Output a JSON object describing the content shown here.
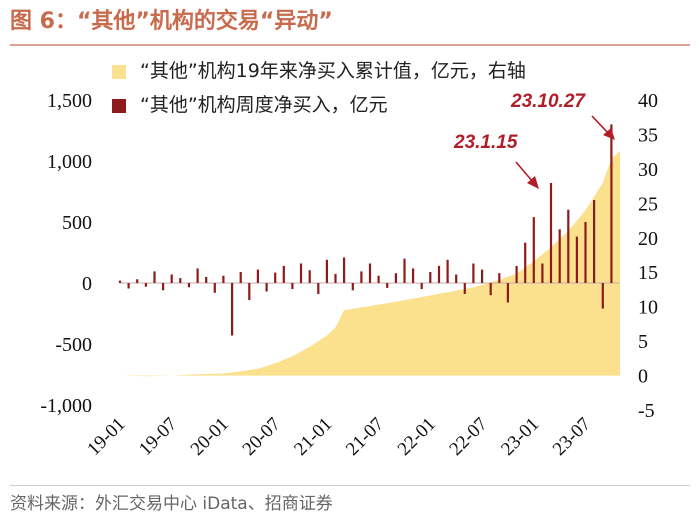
{
  "title": "图 6：“其他”机构的交易“异动”",
  "source": "资料来源：外汇交易中心 iData、招商证券",
  "colors": {
    "title": "#c86a4c",
    "cumulative": "#fbe18e",
    "weekly": "#8e1b1b",
    "annotation": "#b01e2a"
  },
  "chart_data": {
    "type": "bar",
    "legend": [
      {
        "name": "“其他”机构19年来净买入累计值，亿元，右轴",
        "color": "#fbe18e",
        "kind": "area"
      },
      {
        "name": "“其他”机构周度净买入，亿元",
        "color": "#8e1b1b",
        "kind": "bar"
      }
    ],
    "left_axis": {
      "ylim": [
        -1000,
        1500
      ],
      "ticks": [
        -1000,
        -500,
        0,
        500,
        1000,
        1500
      ],
      "tick_labels": [
        "-1,000",
        "-500",
        "0",
        "500",
        "1,000",
        "1,500"
      ]
    },
    "right_axis": {
      "ylim": [
        -5,
        40
      ],
      "ticks": [
        -5,
        0,
        5,
        10,
        15,
        20,
        25,
        30,
        35,
        40
      ],
      "tick_labels": [
        "-5",
        "0",
        "5",
        "10",
        "15",
        "20",
        "25",
        "30",
        "35",
        "40"
      ]
    },
    "x_tick_labels": [
      "19-01",
      "19-07",
      "20-01",
      "20-07",
      "21-01",
      "21-07",
      "22-01",
      "22-07",
      "23-01",
      "23-07"
    ],
    "x_start": "2019-01",
    "x_end": "2023-11",
    "series": [
      {
        "name": "“其他”机构19年来净买入累计值，亿元，右轴",
        "axis": "right",
        "points": [
          [
            "2019-01",
            0.0
          ],
          [
            "2019-04",
            -0.1
          ],
          [
            "2019-07",
            0.0
          ],
          [
            "2019-10",
            0.2
          ],
          [
            "2020-01",
            0.3
          ],
          [
            "2020-03",
            0.6
          ],
          [
            "2020-05",
            1.0
          ],
          [
            "2020-07",
            1.8
          ],
          [
            "2020-09",
            2.8
          ],
          [
            "2020-11",
            4.2
          ],
          [
            "2021-01",
            5.8
          ],
          [
            "2021-02",
            7.0
          ],
          [
            "2021-03",
            9.5
          ],
          [
            "2021-06",
            10.1
          ],
          [
            "2021-09",
            10.7
          ],
          [
            "2021-12",
            11.4
          ],
          [
            "2022-03",
            12.1
          ],
          [
            "2022-06",
            12.8
          ],
          [
            "2022-09",
            13.9
          ],
          [
            "2022-11",
            14.8
          ],
          [
            "2023-01",
            16.6
          ],
          [
            "2023-03",
            18.6
          ],
          [
            "2023-05",
            21.0
          ],
          [
            "2023-07",
            24.0
          ],
          [
            "2023-09",
            28.0
          ],
          [
            "2023-10",
            31.5
          ],
          [
            "2023-11",
            32.6
          ]
        ]
      },
      {
        "name": "“其他”机构周度净买入，亿元",
        "axis": "left",
        "points": [
          [
            "2019-01",
            20
          ],
          [
            "2019-02",
            -45
          ],
          [
            "2019-03",
            30
          ],
          [
            "2019-04",
            -30
          ],
          [
            "2019-05",
            95
          ],
          [
            "2019-06",
            -60
          ],
          [
            "2019-07",
            70
          ],
          [
            "2019-08",
            40
          ],
          [
            "2019-09",
            -35
          ],
          [
            "2019-10",
            120
          ],
          [
            "2019-11",
            50
          ],
          [
            "2019-12",
            -80
          ],
          [
            "2020-01",
            60
          ],
          [
            "2020-02",
            -430
          ],
          [
            "2020-03",
            90
          ],
          [
            "2020-04",
            -140
          ],
          [
            "2020-05",
            110
          ],
          [
            "2020-06",
            -70
          ],
          [
            "2020-07",
            85
          ],
          [
            "2020-08",
            140
          ],
          [
            "2020-09",
            -50
          ],
          [
            "2020-10",
            160
          ],
          [
            "2020-11",
            105
          ],
          [
            "2020-12",
            -90
          ],
          [
            "2021-01",
            190
          ],
          [
            "2021-02",
            75
          ],
          [
            "2021-03",
            210
          ],
          [
            "2021-04",
            -60
          ],
          [
            "2021-05",
            95
          ],
          [
            "2021-06",
            160
          ],
          [
            "2021-07",
            60
          ],
          [
            "2021-08",
            -40
          ],
          [
            "2021-09",
            80
          ],
          [
            "2021-10",
            200
          ],
          [
            "2021-11",
            120
          ],
          [
            "2021-12",
            -50
          ],
          [
            "2022-01",
            90
          ],
          [
            "2022-02",
            140
          ],
          [
            "2022-03",
            190
          ],
          [
            "2022-04",
            70
          ],
          [
            "2022-05",
            -90
          ],
          [
            "2022-06",
            160
          ],
          [
            "2022-07",
            110
          ],
          [
            "2022-08",
            -100
          ],
          [
            "2022-09",
            80
          ],
          [
            "2022-10",
            -160
          ],
          [
            "2022-11",
            140
          ],
          [
            "2022-12",
            330
          ],
          [
            "2023-01",
            540
          ],
          [
            "2023-02",
            160
          ],
          [
            "2023-03",
            820
          ],
          [
            "2023-04",
            440
          ],
          [
            "2023-05",
            600
          ],
          [
            "2023-06",
            380
          ],
          [
            "2023-07",
            500
          ],
          [
            "2023-08",
            680
          ],
          [
            "2023-09",
            -210
          ],
          [
            "2023-10",
            1300
          ]
        ]
      }
    ],
    "annotations": [
      {
        "text": "23.1.15",
        "date": "2023-01"
      },
      {
        "text": "23.10.27",
        "date": "2023-10"
      }
    ]
  }
}
